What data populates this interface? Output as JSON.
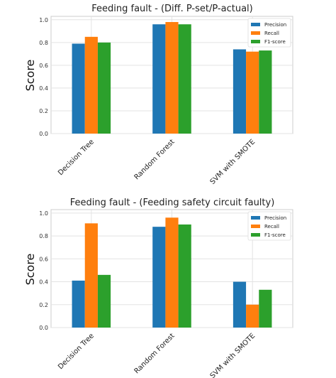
{
  "chart_data": [
    {
      "type": "bar",
      "title": "Feeding fault - (Diff. P-set/P-actual)",
      "xlabel": "",
      "ylabel": "Score",
      "ylim": [
        0,
        1.03
      ],
      "yticks": [
        "0.0",
        "0.2",
        "0.4",
        "0.6",
        "0.8",
        "1.0"
      ],
      "grid": true,
      "legend_position": "top-right",
      "categories": [
        "Decision Tree",
        "Random Forest",
        "SVM with SMOTE"
      ],
      "series": [
        {
          "name": "Precision",
          "color": "#1f77b4",
          "values": [
            0.79,
            0.96,
            0.74
          ]
        },
        {
          "name": "Recall",
          "color": "#ff7f0e",
          "values": [
            0.85,
            0.98,
            0.72
          ]
        },
        {
          "name": "F1-score",
          "color": "#2ca02c",
          "values": [
            0.8,
            0.96,
            0.73
          ]
        }
      ]
    },
    {
      "type": "bar",
      "title": "Feeding fault - (Feeding safety circuit faulty)",
      "xlabel": "",
      "ylabel": "Score",
      "ylim": [
        0,
        1.03
      ],
      "yticks": [
        "0.0",
        "0.2",
        "0.4",
        "0.6",
        "0.8",
        "1.0"
      ],
      "grid": true,
      "legend_position": "top-right",
      "categories": [
        "Decision Tree",
        "Random Forest",
        "SVM with SMOTE"
      ],
      "series": [
        {
          "name": "Precision",
          "color": "#1f77b4",
          "values": [
            0.41,
            0.88,
            0.4
          ]
        },
        {
          "name": "Recall",
          "color": "#ff7f0e",
          "values": [
            0.91,
            0.96,
            0.2
          ]
        },
        {
          "name": "F1-score",
          "color": "#2ca02c",
          "values": [
            0.46,
            0.9,
            0.33
          ]
        }
      ]
    }
  ]
}
